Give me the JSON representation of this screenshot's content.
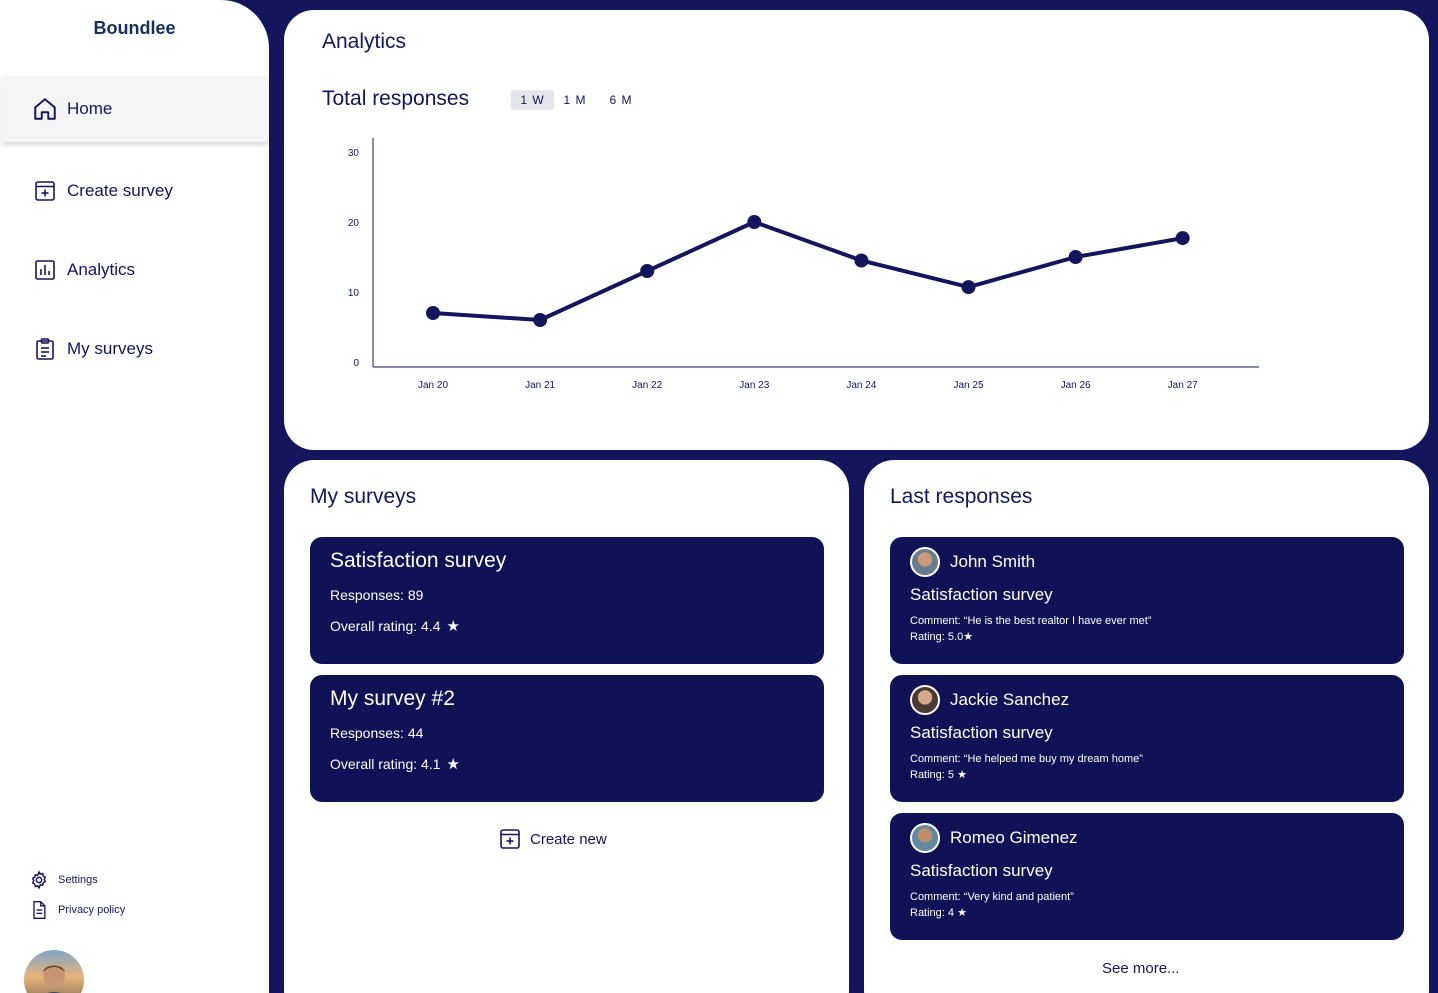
{
  "brand": "Boundlee",
  "nav": {
    "home": "Home",
    "create_survey": "Create survey",
    "analytics": "Analytics",
    "my_surveys": "My surveys"
  },
  "footer": {
    "settings": "Settings",
    "privacy": "Privacy policy"
  },
  "analytics": {
    "title": "Analytics",
    "chart_title": "Total responses",
    "ranges": [
      "1 W",
      "1 M",
      "6 M"
    ],
    "active_range": "1 W"
  },
  "chart_data": {
    "type": "line",
    "title": "Total responses",
    "x": [
      "Jan 20",
      "Jan 21",
      "Jan 22",
      "Jan 23",
      "Jan 24",
      "Jan 25",
      "Jan 26",
      "Jan 27"
    ],
    "values": [
      7,
      6,
      13,
      20,
      14.5,
      10.7,
      15,
      17.7
    ],
    "yticks": [
      0,
      10,
      20,
      30
    ],
    "ylim": [
      0,
      30
    ],
    "grid": false,
    "color": "#15155e"
  },
  "surveys": {
    "title": "My surveys",
    "items": [
      {
        "name": "Satisfaction survey",
        "responses": "Responses: 89",
        "rating": "Overall rating: 4.4"
      },
      {
        "name": "My survey #2",
        "responses": "Responses: 44",
        "rating": "Overall rating: 4.1"
      }
    ],
    "create_new": "Create new"
  },
  "responses": {
    "title": "Last responses",
    "items": [
      {
        "name": "John Smith",
        "survey": "Satisfaction survey",
        "comment": "Comment: “He is the best realtor I have ever met”",
        "rating": "Rating: 5.0"
      },
      {
        "name": "Jackie Sanchez",
        "survey": "Satisfaction survey",
        "comment": "Comment: “He helped me buy my dream home”",
        "rating": "Rating: 5"
      },
      {
        "name": "Romeo Gimenez",
        "survey": "Satisfaction survey",
        "comment": "Comment: “Very kind and patient”",
        "rating": "Rating: 4"
      }
    ],
    "see_more": "See more..."
  },
  "colors": {
    "background": "#15155e",
    "card": "#ffffff",
    "item": "#111255",
    "brand": "#15305e"
  }
}
